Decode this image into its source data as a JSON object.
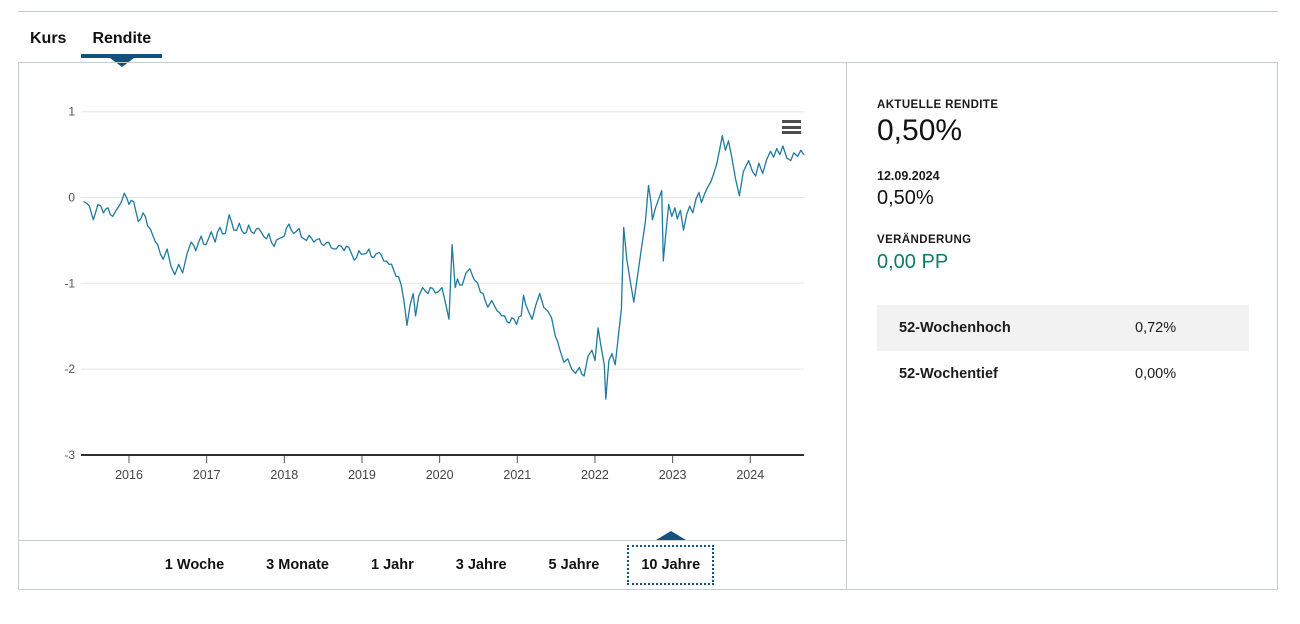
{
  "tabs": [
    {
      "label": "Kurs",
      "active": false
    },
    {
      "label": "Rendite",
      "active": true
    }
  ],
  "ranges": {
    "options": [
      "1 Woche",
      "3 Monate",
      "1 Jahr",
      "3 Jahre",
      "5 Jahre",
      "10 Jahre"
    ],
    "active": "10 Jahre"
  },
  "panel": {
    "current_label": "AKTUELLE RENDITE",
    "current_value": "0,50%",
    "date": "12.09.2024",
    "date_value": "0,50%",
    "change_label": "VERÄNDERUNG",
    "change_value": "0,00 PP",
    "rows": [
      {
        "label": "52-Wochenhoch",
        "value": "0,72%"
      },
      {
        "label": "52-Wochentief",
        "value": "0,00%"
      }
    ]
  },
  "colors": {
    "accent_navy": "#15517c",
    "line_teal": "#1f7a9e",
    "change_green": "#0e7b6a",
    "grid": "#e7e7e7",
    "axis": "#2f2f2f",
    "row_bg": "#f2f2f2",
    "border": "#c7cdcb"
  },
  "icons": {
    "chart_menu": "hamburger-menu-icon",
    "active_tab_marker": "triangle-down-icon",
    "active_range_marker": "triangle-up-icon"
  },
  "chart_data": {
    "type": "line",
    "title": "",
    "xlabel": "",
    "ylabel": "",
    "grid": "on",
    "legend": "off",
    "ylim": [
      -3,
      1
    ],
    "xlim": [
      2015.38,
      2024.72
    ],
    "y_ticks": [
      1,
      0,
      -1,
      -2,
      -3
    ],
    "x_ticks": [
      2016,
      2017,
      2018,
      2019,
      2020,
      2021,
      2022,
      2023,
      2024
    ],
    "series": [
      {
        "name": "Rendite",
        "color": "#1f7a9e",
        "points": [
          [
            2015.42,
            -0.05
          ],
          [
            2015.49,
            -0.1
          ],
          [
            2015.54,
            -0.26
          ],
          [
            2015.6,
            -0.08
          ],
          [
            2015.67,
            -0.18
          ],
          [
            2015.73,
            -0.12
          ],
          [
            2015.79,
            -0.22
          ],
          [
            2015.87,
            -0.1
          ],
          [
            2015.94,
            0.05
          ],
          [
            2016.0,
            -0.08
          ],
          [
            2016.06,
            -0.05
          ],
          [
            2016.12,
            -0.28
          ],
          [
            2016.18,
            -0.18
          ],
          [
            2016.24,
            -0.33
          ],
          [
            2016.31,
            -0.45
          ],
          [
            2016.37,
            -0.55
          ],
          [
            2016.44,
            -0.72
          ],
          [
            2016.49,
            -0.6
          ],
          [
            2016.54,
            -0.8
          ],
          [
            2016.59,
            -0.9
          ],
          [
            2016.64,
            -0.78
          ],
          [
            2016.69,
            -0.88
          ],
          [
            2016.75,
            -0.65
          ],
          [
            2016.8,
            -0.52
          ],
          [
            2016.86,
            -0.62
          ],
          [
            2016.93,
            -0.45
          ],
          [
            2016.99,
            -0.55
          ],
          [
            2017.06,
            -0.4
          ],
          [
            2017.11,
            -0.52
          ],
          [
            2017.17,
            -0.35
          ],
          [
            2017.24,
            -0.42
          ],
          [
            2017.29,
            -0.2
          ],
          [
            2017.35,
            -0.38
          ],
          [
            2017.42,
            -0.3
          ],
          [
            2017.48,
            -0.42
          ],
          [
            2017.54,
            -0.32
          ],
          [
            2017.61,
            -0.42
          ],
          [
            2017.67,
            -0.36
          ],
          [
            2017.74,
            -0.46
          ],
          [
            2017.8,
            -0.42
          ],
          [
            2017.87,
            -0.57
          ],
          [
            2017.93,
            -0.48
          ],
          [
            2018.0,
            -0.45
          ],
          [
            2018.06,
            -0.31
          ],
          [
            2018.12,
            -0.42
          ],
          [
            2018.19,
            -0.36
          ],
          [
            2018.25,
            -0.48
          ],
          [
            2018.32,
            -0.44
          ],
          [
            2018.38,
            -0.52
          ],
          [
            2018.45,
            -0.48
          ],
          [
            2018.51,
            -0.56
          ],
          [
            2018.57,
            -0.52
          ],
          [
            2018.64,
            -0.6
          ],
          [
            2018.7,
            -0.56
          ],
          [
            2018.77,
            -0.62
          ],
          [
            2018.83,
            -0.58
          ],
          [
            2018.9,
            -0.73
          ],
          [
            2018.96,
            -0.62
          ],
          [
            2019.02,
            -0.66
          ],
          [
            2019.09,
            -0.6
          ],
          [
            2019.15,
            -0.7
          ],
          [
            2019.22,
            -0.64
          ],
          [
            2019.28,
            -0.74
          ],
          [
            2019.35,
            -0.78
          ],
          [
            2019.41,
            -0.85
          ],
          [
            2019.47,
            -0.92
          ],
          [
            2019.54,
            -1.2
          ],
          [
            2019.58,
            -1.49
          ],
          [
            2019.62,
            -1.25
          ],
          [
            2019.66,
            -1.12
          ],
          [
            2019.69,
            -1.38
          ],
          [
            2019.73,
            -1.15
          ],
          [
            2019.78,
            -1.05
          ],
          [
            2019.85,
            -1.12
          ],
          [
            2019.91,
            -1.06
          ],
          [
            2019.98,
            -1.1
          ],
          [
            2020.03,
            -1.05
          ],
          [
            2020.08,
            -1.25
          ],
          [
            2020.12,
            -1.42
          ],
          [
            2020.16,
            -0.55
          ],
          [
            2020.2,
            -1.05
          ],
          [
            2020.23,
            -0.95
          ],
          [
            2020.29,
            -1.02
          ],
          [
            2020.34,
            -0.88
          ],
          [
            2020.39,
            -0.83
          ],
          [
            2020.44,
            -0.95
          ],
          [
            2020.49,
            -1.0
          ],
          [
            2020.56,
            -1.12
          ],
          [
            2020.62,
            -1.28
          ],
          [
            2020.67,
            -1.2
          ],
          [
            2020.74,
            -1.32
          ],
          [
            2020.8,
            -1.38
          ],
          [
            2020.87,
            -1.45
          ],
          [
            2020.93,
            -1.4
          ],
          [
            2020.99,
            -1.48
          ],
          [
            2021.05,
            -1.38
          ],
          [
            2021.08,
            -1.14
          ],
          [
            2021.14,
            -1.32
          ],
          [
            2021.19,
            -1.42
          ],
          [
            2021.24,
            -1.25
          ],
          [
            2021.29,
            -1.12
          ],
          [
            2021.34,
            -1.28
          ],
          [
            2021.39,
            -1.32
          ],
          [
            2021.44,
            -1.4
          ],
          [
            2021.49,
            -1.62
          ],
          [
            2021.55,
            -1.78
          ],
          [
            2021.6,
            -1.92
          ],
          [
            2021.65,
            -1.88
          ],
          [
            2021.7,
            -2.0
          ],
          [
            2021.75,
            -2.05
          ],
          [
            2021.8,
            -1.98
          ],
          [
            2021.86,
            -2.08
          ],
          [
            2021.91,
            -1.85
          ],
          [
            2021.96,
            -1.78
          ],
          [
            2022.0,
            -1.9
          ],
          [
            2022.04,
            -1.52
          ],
          [
            2022.08,
            -1.75
          ],
          [
            2022.12,
            -1.95
          ],
          [
            2022.14,
            -2.35
          ],
          [
            2022.18,
            -1.9
          ],
          [
            2022.22,
            -1.82
          ],
          [
            2022.26,
            -1.95
          ],
          [
            2022.3,
            -1.62
          ],
          [
            2022.34,
            -1.3
          ],
          [
            2022.37,
            -0.35
          ],
          [
            2022.41,
            -0.72
          ],
          [
            2022.45,
            -0.95
          ],
          [
            2022.5,
            -1.22
          ],
          [
            2022.55,
            -0.9
          ],
          [
            2022.6,
            -0.58
          ],
          [
            2022.65,
            -0.28
          ],
          [
            2022.69,
            0.14
          ],
          [
            2022.72,
            -0.05
          ],
          [
            2022.74,
            -0.26
          ],
          [
            2022.78,
            -0.12
          ],
          [
            2022.82,
            -0.02
          ],
          [
            2022.86,
            0.08
          ],
          [
            2022.88,
            -0.74
          ],
          [
            2022.92,
            -0.35
          ],
          [
            2022.95,
            -0.08
          ],
          [
            2022.99,
            -0.22
          ],
          [
            2023.03,
            -0.12
          ],
          [
            2023.06,
            -0.25
          ],
          [
            2023.1,
            -0.15
          ],
          [
            2023.14,
            -0.38
          ],
          [
            2023.18,
            -0.2
          ],
          [
            2023.22,
            -0.1
          ],
          [
            2023.26,
            -0.18
          ],
          [
            2023.3,
            -0.02
          ],
          [
            2023.34,
            0.06
          ],
          [
            2023.37,
            -0.06
          ],
          [
            2023.41,
            0.04
          ],
          [
            2023.45,
            0.12
          ],
          [
            2023.49,
            0.18
          ],
          [
            2023.53,
            0.28
          ],
          [
            2023.57,
            0.4
          ],
          [
            2023.61,
            0.58
          ],
          [
            2023.64,
            0.72
          ],
          [
            2023.68,
            0.55
          ],
          [
            2023.72,
            0.66
          ],
          [
            2023.76,
            0.48
          ],
          [
            2023.81,
            0.22
          ],
          [
            2023.86,
            0.02
          ],
          [
            2023.91,
            0.3
          ],
          [
            2023.98,
            0.43
          ],
          [
            2024.03,
            0.3
          ],
          [
            2024.07,
            0.25
          ],
          [
            2024.11,
            0.4
          ],
          [
            2024.16,
            0.28
          ],
          [
            2024.21,
            0.44
          ],
          [
            2024.26,
            0.54
          ],
          [
            2024.3,
            0.47
          ],
          [
            2024.34,
            0.57
          ],
          [
            2024.38,
            0.5
          ],
          [
            2024.42,
            0.6
          ],
          [
            2024.47,
            0.46
          ],
          [
            2024.52,
            0.43
          ],
          [
            2024.56,
            0.52
          ],
          [
            2024.61,
            0.48
          ],
          [
            2024.65,
            0.55
          ],
          [
            2024.69,
            0.5
          ]
        ]
      }
    ]
  }
}
